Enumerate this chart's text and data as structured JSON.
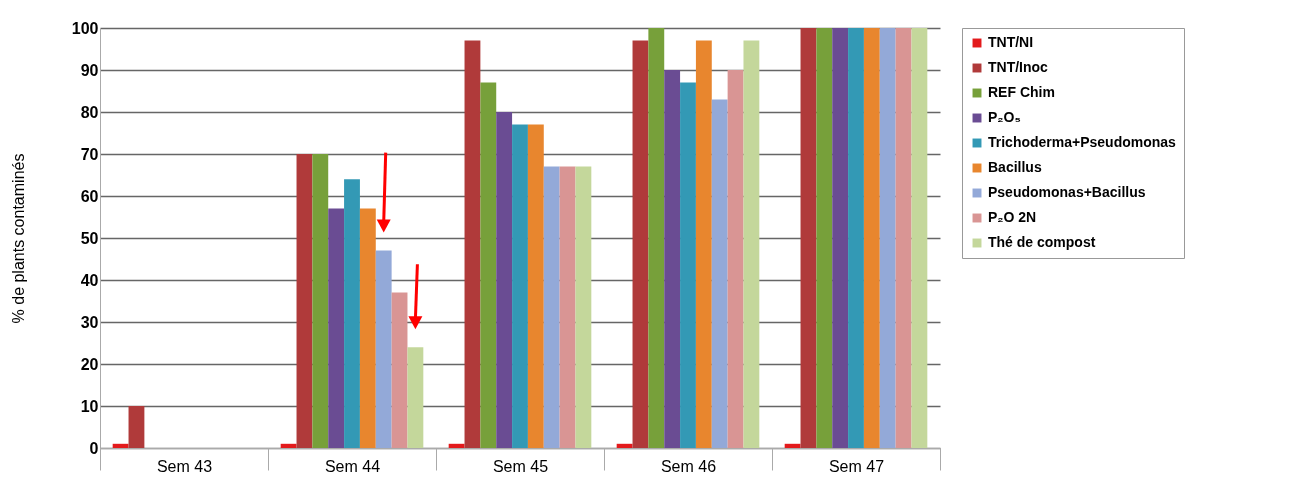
{
  "chart_data": {
    "type": "bar",
    "ylabel": "% de plants contaminés",
    "categories": [
      "Sem 43",
      "Sem 44",
      "Sem 45",
      "Sem 46",
      "Sem 47"
    ],
    "series": [
      {
        "name": "TNT/NI",
        "color": "#e31a1c",
        "values": [
          1,
          1,
          1,
          1,
          1
        ]
      },
      {
        "name": "TNT/Inoc",
        "color": "#b03a3a",
        "values": [
          10,
          70,
          97,
          97,
          100
        ]
      },
      {
        "name": "REF Chim",
        "color": "#77a03a",
        "values": [
          0,
          70,
          87,
          100,
          100
        ]
      },
      {
        "name": "P₂O₅",
        "color": "#6a4c93",
        "values": [
          0,
          57,
          80,
          90,
          100
        ]
      },
      {
        "name": "Trichoderma+Pseudomonas",
        "color": "#3399b5",
        "values": [
          0,
          64,
          77,
          87,
          100
        ]
      },
      {
        "name": "Bacillus",
        "color": "#e8862e",
        "values": [
          0,
          57,
          77,
          97,
          100
        ]
      },
      {
        "name": "Pseudomonas+Bacillus",
        "color": "#93a9d8",
        "values": [
          0,
          47,
          67,
          83,
          100
        ]
      },
      {
        "name": "P₂O 2N",
        "color": "#d99594",
        "values": [
          0,
          37,
          67,
          90,
          100
        ]
      },
      {
        "name": "Thé de compost",
        "color": "#c4d79b",
        "values": [
          0,
          24,
          67,
          97,
          100
        ]
      }
    ],
    "ylim": [
      0,
      100
    ],
    "yticks": [
      0,
      10,
      20,
      30,
      40,
      50,
      60,
      70,
      80,
      90,
      100
    ],
    "grid": "y",
    "legend": "right"
  }
}
